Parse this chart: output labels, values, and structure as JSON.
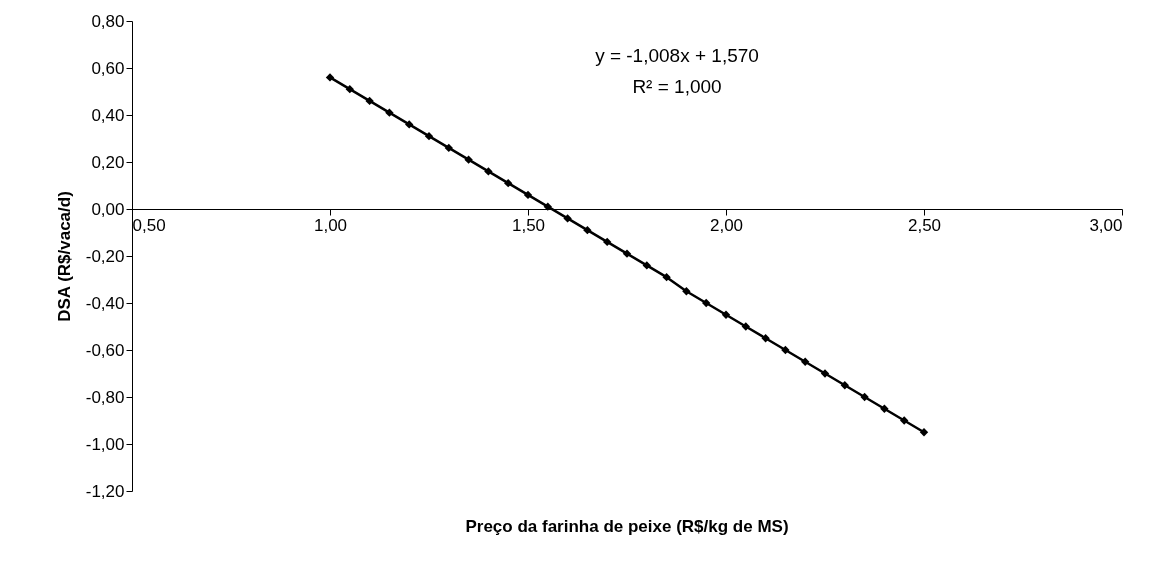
{
  "chart_data": {
    "type": "line",
    "xlabel": "Preço da farinha de peixe (R$/kg de MS)",
    "ylabel": "DSA (R$/vaca/d)",
    "annotations": [
      "y = -1,008x + 1,570",
      "R² = 1,000"
    ],
    "x": [
      1.0,
      1.05,
      1.1,
      1.15,
      1.2,
      1.25,
      1.3,
      1.35,
      1.4,
      1.45,
      1.5,
      1.55,
      1.6,
      1.65,
      1.7,
      1.75,
      1.8,
      1.85,
      1.9,
      1.95,
      2.0,
      2.05,
      2.1,
      2.15,
      2.2,
      2.25,
      2.3,
      2.35,
      2.4,
      2.45,
      2.5
    ],
    "series": [
      {
        "color": "#000000",
        "values": [
          0.56,
          0.51,
          0.46,
          0.41,
          0.36,
          0.31,
          0.26,
          0.21,
          0.16,
          0.11,
          0.06,
          0.01,
          -0.04,
          -0.09,
          -0.14,
          -0.19,
          -0.24,
          -0.29,
          -0.35,
          -0.4,
          -0.45,
          -0.5,
          -0.55,
          -0.6,
          -0.65,
          -0.7,
          -0.75,
          -0.8,
          -0.85,
          -0.9,
          -0.95
        ]
      }
    ],
    "xlim": [
      0.5,
      3.0
    ],
    "xticks": [
      {
        "value": 0.5,
        "label": "0,50"
      },
      {
        "value": 1.0,
        "label": "1,00"
      },
      {
        "value": 1.5,
        "label": "1,50"
      },
      {
        "value": 2.0,
        "label": "2,00"
      },
      {
        "value": 2.5,
        "label": "2,50"
      },
      {
        "value": 3.0,
        "label": "3,00"
      }
    ],
    "ylim": [
      -1.2,
      0.8
    ],
    "yticks": [
      {
        "value": -1.2,
        "label": "-1,20"
      },
      {
        "value": -1.0,
        "label": "-1,00"
      },
      {
        "value": -0.8,
        "label": "-0,80"
      },
      {
        "value": -0.6,
        "label": "-0,60"
      },
      {
        "value": -0.4,
        "label": "-0,40"
      },
      {
        "value": -0.2,
        "label": "-0,20"
      },
      {
        "value": 0.0,
        "label": "0,00"
      },
      {
        "value": 0.2,
        "label": "0,20"
      },
      {
        "value": 0.4,
        "label": "0,40"
      },
      {
        "value": 0.6,
        "label": "0,60"
      },
      {
        "value": 0.8,
        "label": "0,80"
      }
    ],
    "grid": false,
    "marker": "diamond",
    "line_style": "solid"
  }
}
